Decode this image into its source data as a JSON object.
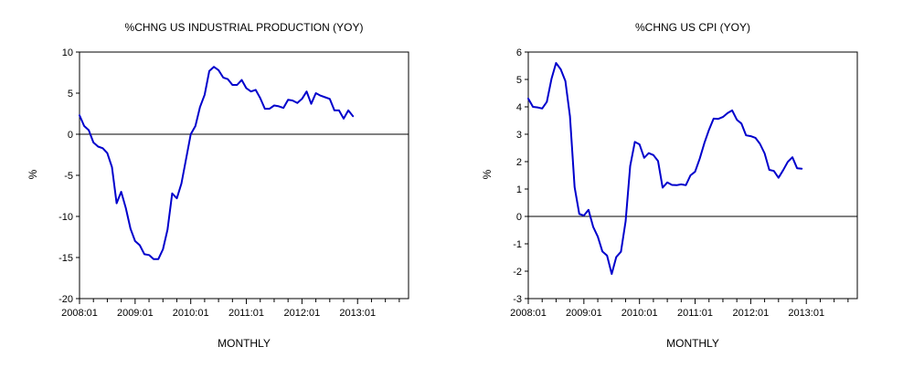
{
  "chart_data": [
    {
      "type": "line",
      "title": "%CHNG US INDUSTRIAL PRODUCTION (YOY)",
      "xlabel": "MONTHLY",
      "ylabel": "%",
      "ylim": [
        -20,
        10
      ],
      "yticks": [
        "10",
        "5",
        "0",
        "-5",
        "-10",
        "-15",
        "-20"
      ],
      "xtick_labels": [
        "2008:01",
        "2009:01",
        "2010:01",
        "2011:01",
        "2012:01",
        "2013:01"
      ],
      "x_range": [
        "2008:01",
        "2013:12"
      ],
      "zero_line": true,
      "line_color": "#0000cc",
      "series": [
        {
          "x": [
            "2008:01",
            "2008:02",
            "2008:03",
            "2008:04",
            "2008:05",
            "2008:06",
            "2008:07",
            "2008:08",
            "2008:09",
            "2008:10",
            "2008:11",
            "2008:12",
            "2009:01",
            "2009:02",
            "2009:03",
            "2009:04",
            "2009:05",
            "2009:06",
            "2009:07",
            "2009:08",
            "2009:09",
            "2009:10",
            "2009:11",
            "2009:12",
            "2010:01",
            "2010:02",
            "2010:03",
            "2010:04",
            "2010:05",
            "2010:06",
            "2010:07",
            "2010:08",
            "2010:09",
            "2010:10",
            "2010:11",
            "2010:12",
            "2011:01",
            "2011:02",
            "2011:03",
            "2011:04",
            "2011:05",
            "2011:06",
            "2011:07",
            "2011:08",
            "2011:09",
            "2011:10",
            "2011:11",
            "2011:12",
            "2012:01",
            "2012:02",
            "2012:03",
            "2012:04",
            "2012:05",
            "2012:06",
            "2012:07",
            "2012:08",
            "2012:09",
            "2012:10",
            "2012:11",
            "2012:12"
          ],
          "values": [
            2.3,
            1.0,
            0.5,
            -1.0,
            -1.5,
            -1.7,
            -2.3,
            -4.0,
            -8.4,
            -7.0,
            -9.0,
            -11.5,
            -13.0,
            -13.5,
            -14.6,
            -14.7,
            -15.2,
            -15.2,
            -14.0,
            -11.6,
            -7.2,
            -7.8,
            -6.0,
            -3.0,
            0.0,
            1.0,
            3.3,
            4.8,
            7.7,
            8.2,
            7.8,
            6.9,
            6.7,
            6.0,
            6.0,
            6.6,
            5.6,
            5.2,
            5.4,
            4.4,
            3.1,
            3.1,
            3.5,
            3.4,
            3.2,
            4.2,
            4.1,
            3.8,
            4.3,
            5.2,
            3.7,
            5.0,
            4.7,
            4.5,
            4.3,
            2.9,
            2.9,
            1.9,
            2.9,
            2.2
          ]
        }
      ]
    },
    {
      "type": "line",
      "title": "%CHNG US CPI (YOY)",
      "xlabel": "MONTHLY",
      "ylabel": "%",
      "ylim": [
        -3,
        6
      ],
      "yticks": [
        "6",
        "5",
        "4",
        "3",
        "2",
        "1",
        "0",
        "-1",
        "-2",
        "-3"
      ],
      "xtick_labels": [
        "2008:01",
        "2009:01",
        "2010:01",
        "2011:01",
        "2012:01",
        "2013:01"
      ],
      "x_range": [
        "2008:01",
        "2013:12"
      ],
      "zero_line": true,
      "line_color": "#0000cc",
      "series": [
        {
          "x": [
            "2008:01",
            "2008:02",
            "2008:03",
            "2008:04",
            "2008:05",
            "2008:06",
            "2008:07",
            "2008:08",
            "2008:09",
            "2008:10",
            "2008:11",
            "2008:12",
            "2009:01",
            "2009:02",
            "2009:03",
            "2009:04",
            "2009:05",
            "2009:06",
            "2009:07",
            "2009:08",
            "2009:09",
            "2009:10",
            "2009:11",
            "2009:12",
            "2010:01",
            "2010:02",
            "2010:03",
            "2010:04",
            "2010:05",
            "2010:06",
            "2010:07",
            "2010:08",
            "2010:09",
            "2010:10",
            "2010:11",
            "2010:12",
            "2011:01",
            "2011:02",
            "2011:03",
            "2011:04",
            "2011:05",
            "2011:06",
            "2011:07",
            "2011:08",
            "2011:09",
            "2011:10",
            "2011:11",
            "2011:12",
            "2012:01",
            "2012:02",
            "2012:03",
            "2012:04",
            "2012:05",
            "2012:06",
            "2012:07",
            "2012:08",
            "2012:09",
            "2012:10",
            "2012:11",
            "2012:12"
          ],
          "values": [
            4.3,
            4.0,
            3.98,
            3.94,
            4.18,
            5.02,
            5.6,
            5.37,
            4.94,
            3.66,
            1.07,
            0.09,
            0.03,
            0.24,
            -0.38,
            -0.74,
            -1.28,
            -1.43,
            -2.1,
            -1.48,
            -1.29,
            -0.18,
            1.84,
            2.72,
            2.63,
            2.14,
            2.31,
            2.24,
            2.02,
            1.05,
            1.24,
            1.15,
            1.14,
            1.17,
            1.14,
            1.5,
            1.63,
            2.11,
            2.68,
            3.16,
            3.57,
            3.56,
            3.63,
            3.77,
            3.87,
            3.53,
            3.39,
            2.96,
            2.93,
            2.87,
            2.65,
            2.3,
            1.7,
            1.66,
            1.41,
            1.69,
            1.99,
            2.16,
            1.76,
            1.74
          ]
        }
      ]
    }
  ]
}
